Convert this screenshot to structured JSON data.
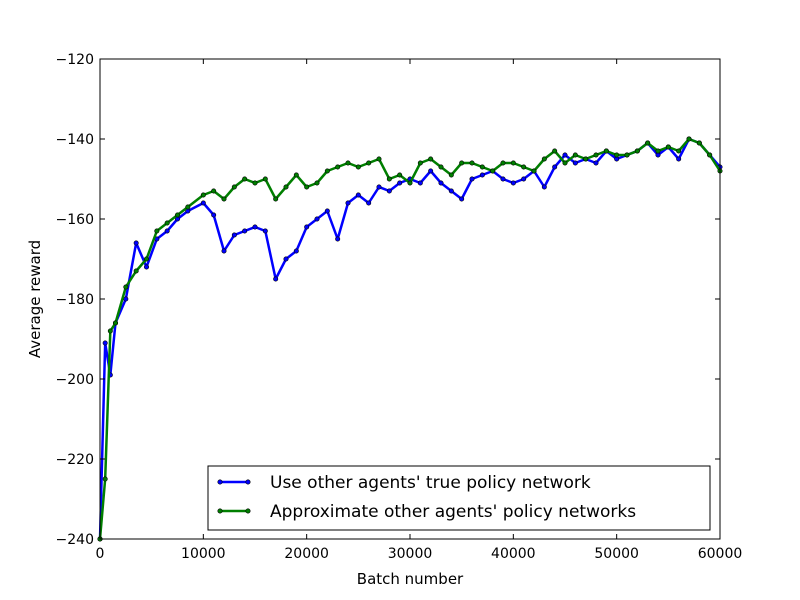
{
  "chart_data": {
    "type": "line",
    "title": "",
    "xlabel": "Batch number",
    "ylabel": "Average reward",
    "xlim": [
      0,
      60000
    ],
    "ylim": [
      -240,
      -120
    ],
    "x_ticks": [
      0,
      10000,
      20000,
      30000,
      40000,
      50000,
      60000
    ],
    "y_ticks": [
      -240,
      -220,
      -200,
      -180,
      -160,
      -140,
      -120
    ],
    "x_tick_labels": [
      "0",
      "10000",
      "20000",
      "30000",
      "40000",
      "50000",
      "60000"
    ],
    "y_tick_labels": [
      "−240",
      "−220",
      "−200",
      "−180",
      "−160",
      "−140",
      "−120"
    ],
    "grid": false,
    "legend_position": "lower-right",
    "series": [
      {
        "name": "Use other agents' true policy network",
        "color": "#0000ff",
        "x": [
          0,
          500,
          1000,
          1500,
          2500,
          3500,
          4500,
          5500,
          6500,
          7500,
          8500,
          10000,
          11000,
          12000,
          13000,
          14000,
          15000,
          16000,
          17000,
          18000,
          19000,
          20000,
          21000,
          22000,
          23000,
          24000,
          25000,
          26000,
          27000,
          28000,
          29000,
          30000,
          31000,
          32000,
          33000,
          34000,
          35000,
          36000,
          37000,
          38000,
          39000,
          40000,
          41000,
          42000,
          43000,
          44000,
          45000,
          46000,
          47000,
          48000,
          49000,
          50000,
          51000,
          52000,
          53000,
          54000,
          55000,
          56000,
          57000,
          58000,
          59000,
          60000
        ],
        "values": [
          -240,
          -191,
          -199,
          -186,
          -180,
          -166,
          -172,
          -165,
          -163,
          -160,
          -158,
          -156,
          -159,
          -168,
          -164,
          -163,
          -162,
          -163,
          -175,
          -170,
          -168,
          -162,
          -160,
          -158,
          -165,
          -156,
          -154,
          -156,
          -152,
          -153,
          -151,
          -150,
          -151,
          -148,
          -151,
          -153,
          -155,
          -150,
          -149,
          -148,
          -150,
          -151,
          -150,
          -148,
          -152,
          -147,
          -144,
          -146,
          -145,
          -146,
          -143,
          -145,
          -144,
          -143,
          -141,
          -144,
          -142,
          -145,
          -140,
          -141,
          -144,
          -147
        ]
      },
      {
        "name": "Approximate other agents' policy networks",
        "color": "#007f00",
        "x": [
          0,
          500,
          1000,
          1500,
          2500,
          3500,
          4500,
          5500,
          6500,
          7500,
          8500,
          10000,
          11000,
          12000,
          13000,
          14000,
          15000,
          16000,
          17000,
          18000,
          19000,
          20000,
          21000,
          22000,
          23000,
          24000,
          25000,
          26000,
          27000,
          28000,
          29000,
          30000,
          31000,
          32000,
          33000,
          34000,
          35000,
          36000,
          37000,
          38000,
          39000,
          40000,
          41000,
          42000,
          43000,
          44000,
          45000,
          46000,
          47000,
          48000,
          49000,
          50000,
          51000,
          52000,
          53000,
          54000,
          55000,
          56000,
          57000,
          58000,
          59000,
          60000
        ],
        "values": [
          -240,
          -225,
          -188,
          -186,
          -177,
          -173,
          -170,
          -163,
          -161,
          -159,
          -157,
          -154,
          -153,
          -155,
          -152,
          -150,
          -151,
          -150,
          -155,
          -152,
          -149,
          -152,
          -151,
          -148,
          -147,
          -146,
          -147,
          -146,
          -145,
          -150,
          -149,
          -151,
          -146,
          -145,
          -147,
          -149,
          -146,
          -146,
          -147,
          -148,
          -146,
          -146,
          -147,
          -148,
          -145,
          -143,
          -146,
          -144,
          -145,
          -144,
          -143,
          -144,
          -144,
          -143,
          -141,
          -143,
          -142,
          -143,
          -140,
          -141,
          -144,
          -148
        ]
      }
    ]
  }
}
